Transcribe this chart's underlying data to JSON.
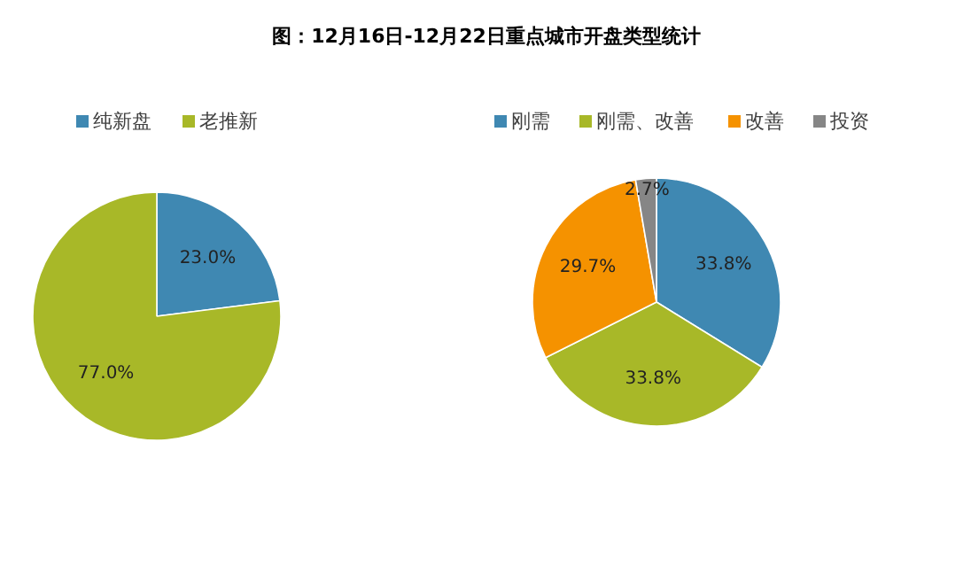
{
  "chart_data": [
    {
      "type": "pie",
      "title": "图：12月16日-12月22日重点城市开盘类型统计",
      "categories": [
        "纯新盘",
        "老推新"
      ],
      "values": [
        23.0,
        77.0
      ],
      "colors": [
        "#3f88b2",
        "#a8b828"
      ],
      "value_labels": [
        "23.0%",
        "77.0%"
      ],
      "legend": "top left"
    },
    {
      "type": "pie",
      "categories": [
        "刚需",
        "刚需、改善",
        "改善",
        "投资"
      ],
      "values": [
        33.8,
        33.8,
        29.7,
        2.7
      ],
      "colors": [
        "#3f88b2",
        "#a8b828",
        "#f59200",
        "#868686"
      ],
      "value_labels": [
        "33.8%",
        "33.8%",
        "29.7%",
        "2.7%"
      ],
      "legend": "top"
    }
  ]
}
